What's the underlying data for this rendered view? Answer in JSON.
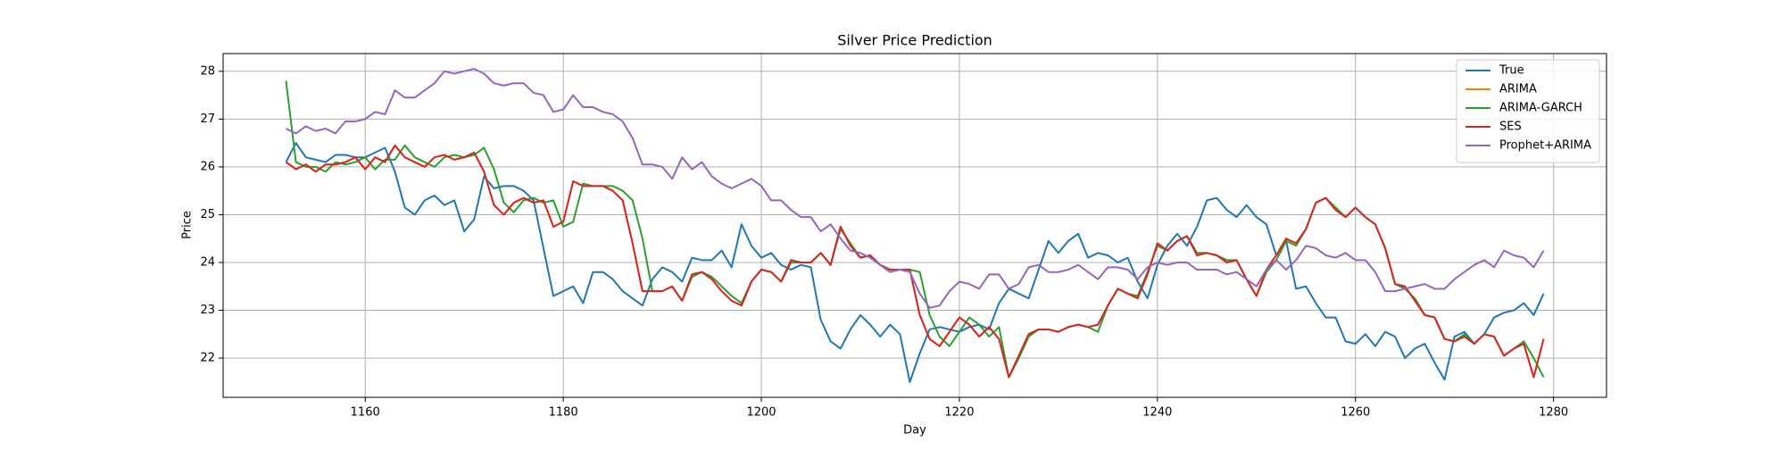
{
  "chart_data": {
    "type": "line",
    "title": "Silver Price Prediction",
    "x_label": "Day",
    "y_label": "Price",
    "x": [
      1152,
      1153,
      1154,
      1155,
      1156,
      1157,
      1158,
      1159,
      1160,
      1161,
      1162,
      1163,
      1164,
      1165,
      1166,
      1167,
      1168,
      1169,
      1170,
      1171,
      1172,
      1173,
      1174,
      1175,
      1176,
      1177,
      1178,
      1179,
      1180,
      1181,
      1182,
      1183,
      1184,
      1185,
      1186,
      1187,
      1188,
      1189,
      1190,
      1191,
      1192,
      1193,
      1194,
      1195,
      1196,
      1197,
      1198,
      1199,
      1200,
      1201,
      1202,
      1203,
      1204,
      1205,
      1206,
      1207,
      1208,
      1209,
      1210,
      1211,
      1212,
      1213,
      1214,
      1215,
      1216,
      1217,
      1218,
      1219,
      1220,
      1221,
      1222,
      1223,
      1224,
      1225,
      1226,
      1227,
      1228,
      1229,
      1230,
      1231,
      1232,
      1233,
      1234,
      1235,
      1236,
      1237,
      1238,
      1239,
      1240,
      1241,
      1242,
      1243,
      1244,
      1245,
      1246,
      1247,
      1248,
      1249,
      1250,
      1251,
      1252,
      1253,
      1254,
      1255,
      1256,
      1257,
      1258,
      1259,
      1260,
      1261,
      1262,
      1263,
      1264,
      1265,
      1266,
      1267,
      1268,
      1269,
      1270,
      1271,
      1272,
      1273,
      1274,
      1275,
      1276,
      1277,
      1278,
      1279
    ],
    "series": [
      {
        "name": "True",
        "color": "#1f77b4",
        "values": [
          26.1,
          26.5,
          26.2,
          26.15,
          26.1,
          26.25,
          26.25,
          26.2,
          26.2,
          26.3,
          26.4,
          25.9,
          25.15,
          25.0,
          25.3,
          25.4,
          25.2,
          25.3,
          24.65,
          24.9,
          25.8,
          25.55,
          25.6,
          25.6,
          25.5,
          25.3,
          24.3,
          23.3,
          23.4,
          23.5,
          23.15,
          23.8,
          23.8,
          23.65,
          23.4,
          23.25,
          23.1,
          23.65,
          23.9,
          23.8,
          23.6,
          24.1,
          24.05,
          24.05,
          24.25,
          23.9,
          24.8,
          24.35,
          24.1,
          24.2,
          23.95,
          23.85,
          23.95,
          23.9,
          22.8,
          22.35,
          22.2,
          22.6,
          22.9,
          22.7,
          22.45,
          22.7,
          22.5,
          21.5,
          22.1,
          22.6,
          22.65,
          22.6,
          22.55,
          22.65,
          22.7,
          22.6,
          23.15,
          23.45,
          23.35,
          23.25,
          23.85,
          24.45,
          24.2,
          24.45,
          24.6,
          24.1,
          24.2,
          24.15,
          24.0,
          24.1,
          23.6,
          23.25,
          23.95,
          24.35,
          24.6,
          24.35,
          24.75,
          25.3,
          25.35,
          25.1,
          24.95,
          25.2,
          24.95,
          24.8,
          24.15,
          24.45,
          23.45,
          23.5,
          23.15,
          22.85,
          22.85,
          22.35,
          22.3,
          22.5,
          22.25,
          22.55,
          22.45,
          22.0,
          22.2,
          22.3,
          21.9,
          21.55,
          22.45,
          22.55,
          22.3,
          22.5,
          22.85,
          22.95,
          23.0,
          23.15,
          22.9,
          23.35
        ]
      },
      {
        "name": "ARIMA",
        "color": "#ff7f0e",
        "values": [
          26.1,
          25.95,
          26.05,
          25.9,
          26.05,
          26.05,
          26.1,
          26.2,
          25.95,
          26.2,
          26.1,
          26.45,
          26.2,
          26.1,
          26.0,
          26.2,
          26.25,
          26.15,
          26.2,
          26.3,
          25.9,
          25.2,
          25.0,
          25.25,
          25.35,
          25.25,
          25.3,
          24.75,
          24.85,
          25.7,
          25.6,
          25.6,
          25.6,
          25.5,
          25.3,
          24.4,
          23.4,
          23.4,
          23.4,
          23.5,
          23.2,
          23.75,
          23.8,
          23.65,
          23.4,
          23.2,
          23.1,
          23.6,
          23.85,
          23.8,
          23.6,
          24.05,
          24.0,
          24.0,
          24.2,
          23.95,
          24.75,
          24.35,
          24.1,
          24.15,
          23.95,
          23.85,
          23.85,
          23.85,
          22.9,
          22.4,
          22.25,
          22.55,
          22.85,
          22.7,
          22.45,
          22.65,
          22.4,
          21.6,
          22.05,
          22.5,
          22.6,
          22.6,
          22.55,
          22.65,
          22.7,
          22.65,
          22.7,
          23.1,
          23.45,
          23.35,
          23.25,
          23.75,
          24.4,
          24.25,
          24.45,
          24.55,
          24.15,
          24.2,
          24.15,
          24.0,
          24.05,
          23.65,
          23.3,
          23.85,
          24.15,
          24.5,
          24.4,
          24.7,
          25.25,
          25.35,
          25.1,
          24.95,
          25.15,
          24.95,
          24.8,
          24.3,
          23.55,
          23.5,
          23.2,
          22.9,
          22.85,
          22.4,
          22.35,
          22.45,
          22.3,
          22.5,
          22.45,
          22.05,
          22.2,
          22.3,
          21.6,
          22.4
        ]
      },
      {
        "name": "ARIMA-GARCH",
        "color": "#2ca02c",
        "values": [
          27.8,
          26.1,
          26.0,
          26.0,
          25.9,
          26.1,
          26.05,
          26.1,
          26.2,
          25.95,
          26.15,
          26.15,
          26.45,
          26.2,
          26.1,
          26.0,
          26.2,
          26.25,
          26.2,
          26.25,
          26.4,
          25.95,
          25.25,
          25.05,
          25.3,
          25.35,
          25.25,
          25.3,
          24.75,
          24.85,
          25.65,
          25.6,
          25.6,
          25.6,
          25.5,
          25.3,
          24.5,
          23.4,
          23.4,
          23.5,
          23.2,
          23.7,
          23.8,
          23.7,
          23.5,
          23.3,
          23.15,
          23.6,
          23.85,
          23.8,
          23.6,
          24.0,
          24.0,
          24.0,
          24.2,
          23.95,
          24.7,
          24.4,
          24.1,
          24.15,
          23.95,
          23.85,
          23.85,
          23.85,
          23.8,
          22.9,
          22.45,
          22.25,
          22.55,
          22.85,
          22.7,
          22.45,
          22.65,
          21.6,
          22.0,
          22.45,
          22.6,
          22.6,
          22.55,
          22.65,
          22.7,
          22.65,
          22.55,
          23.1,
          23.45,
          23.35,
          23.3,
          23.8,
          24.35,
          24.25,
          24.45,
          24.55,
          24.2,
          24.2,
          24.15,
          24.05,
          24.05,
          23.65,
          23.3,
          23.8,
          24.05,
          24.45,
          24.35,
          24.7,
          25.25,
          25.35,
          25.15,
          24.95,
          25.15,
          24.95,
          24.8,
          24.3,
          23.55,
          23.45,
          23.25,
          22.9,
          22.85,
          22.4,
          22.35,
          22.5,
          22.3,
          22.5,
          22.45,
          22.05,
          22.2,
          22.35,
          22.0,
          21.6
        ]
      },
      {
        "name": "SES",
        "color": "#d62728",
        "values": [
          26.1,
          25.95,
          26.05,
          25.9,
          26.05,
          26.05,
          26.1,
          26.2,
          25.95,
          26.2,
          26.1,
          26.45,
          26.2,
          26.1,
          26.0,
          26.2,
          26.25,
          26.15,
          26.2,
          26.3,
          25.9,
          25.2,
          25.0,
          25.25,
          25.35,
          25.25,
          25.3,
          24.75,
          24.85,
          25.7,
          25.6,
          25.6,
          25.6,
          25.5,
          25.3,
          24.4,
          23.4,
          23.4,
          23.4,
          23.5,
          23.2,
          23.75,
          23.8,
          23.65,
          23.4,
          23.2,
          23.1,
          23.6,
          23.85,
          23.8,
          23.6,
          24.05,
          24.0,
          24.0,
          24.2,
          23.95,
          24.75,
          24.35,
          24.1,
          24.15,
          23.95,
          23.85,
          23.85,
          23.85,
          22.9,
          22.4,
          22.25,
          22.55,
          22.85,
          22.7,
          22.45,
          22.65,
          22.4,
          21.6,
          22.05,
          22.5,
          22.6,
          22.6,
          22.55,
          22.65,
          22.7,
          22.65,
          22.7,
          23.1,
          23.45,
          23.35,
          23.25,
          23.75,
          24.4,
          24.25,
          24.45,
          24.55,
          24.15,
          24.2,
          24.15,
          24.0,
          24.05,
          23.65,
          23.3,
          23.85,
          24.15,
          24.5,
          24.4,
          24.7,
          25.25,
          25.35,
          25.1,
          24.95,
          25.15,
          24.95,
          24.8,
          24.3,
          23.55,
          23.5,
          23.2,
          22.9,
          22.85,
          22.4,
          22.35,
          22.45,
          22.3,
          22.5,
          22.45,
          22.05,
          22.2,
          22.3,
          21.6,
          22.4
        ]
      },
      {
        "name": "Prophet+ARIMA",
        "color": "#9467bd",
        "values": [
          26.8,
          26.7,
          26.85,
          26.75,
          26.8,
          26.7,
          26.95,
          26.95,
          27.0,
          27.15,
          27.1,
          27.6,
          27.45,
          27.45,
          27.6,
          27.75,
          28.0,
          27.95,
          28.0,
          28.05,
          27.95,
          27.75,
          27.7,
          27.75,
          27.75,
          27.55,
          27.5,
          27.15,
          27.2,
          27.5,
          27.25,
          27.25,
          27.15,
          27.1,
          26.95,
          26.6,
          26.05,
          26.05,
          26.0,
          25.75,
          26.2,
          25.95,
          26.1,
          25.8,
          25.65,
          25.55,
          25.65,
          25.75,
          25.6,
          25.3,
          25.3,
          25.1,
          24.95,
          24.95,
          24.65,
          24.8,
          24.5,
          24.25,
          24.2,
          24.1,
          23.95,
          23.8,
          23.85,
          23.8,
          23.35,
          23.05,
          23.1,
          23.4,
          23.6,
          23.55,
          23.45,
          23.75,
          23.75,
          23.45,
          23.55,
          23.9,
          23.95,
          23.8,
          23.8,
          23.85,
          23.95,
          23.8,
          23.65,
          23.9,
          23.9,
          23.85,
          23.65,
          23.9,
          24.0,
          23.95,
          24.0,
          24.0,
          23.85,
          23.85,
          23.85,
          23.75,
          23.8,
          23.65,
          23.5,
          23.85,
          24.05,
          23.85,
          24.05,
          24.35,
          24.3,
          24.15,
          24.1,
          24.2,
          24.05,
          24.05,
          23.8,
          23.4,
          23.4,
          23.45,
          23.5,
          23.55,
          23.45,
          23.45,
          23.65,
          23.8,
          23.95,
          24.05,
          23.9,
          24.25,
          24.15,
          24.1,
          23.9,
          24.25
        ]
      }
    ],
    "xlim": [
      1145.65,
      1285.35
    ],
    "ylim": [
      21.18,
      28.37
    ],
    "xticks": [
      1160,
      1180,
      1200,
      1220,
      1240,
      1260,
      1280
    ],
    "yticks": [
      22,
      23,
      24,
      25,
      26,
      27,
      28
    ],
    "grid": true,
    "legend": "upper right"
  }
}
